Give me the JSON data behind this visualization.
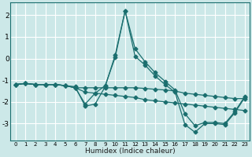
{
  "xlabel": "Humidex (Indice chaleur)",
  "bg_color": "#cce8e8",
  "line_color": "#1a6e6e",
  "grid_color": "#ffffff",
  "x": [
    0,
    1,
    2,
    3,
    4,
    5,
    6,
    7,
    8,
    9,
    10,
    11,
    12,
    13,
    14,
    15,
    16,
    17,
    18,
    19,
    20,
    21,
    22,
    23
  ],
  "line1": [
    -1.2,
    -1.15,
    -1.2,
    -1.2,
    -1.2,
    -1.25,
    -1.3,
    -2.2,
    -2.1,
    -1.3,
    0.15,
    2.2,
    0.1,
    -0.3,
    -0.8,
    -1.2,
    -1.55,
    -3.05,
    -3.4,
    -3.0,
    -3.0,
    -3.05,
    -2.5,
    -1.8
  ],
  "line2": [
    -1.2,
    -1.15,
    -1.2,
    -1.2,
    -1.2,
    -1.25,
    -1.35,
    -2.1,
    -1.6,
    -1.25,
    0.05,
    2.2,
    0.45,
    -0.15,
    -0.65,
    -1.05,
    -1.45,
    -2.55,
    -3.1,
    -2.95,
    -2.95,
    -3.0,
    -2.45,
    -1.75
  ],
  "line3": [
    -1.2,
    -1.15,
    -1.2,
    -1.2,
    -1.2,
    -1.25,
    -1.35,
    -1.35,
    -1.35,
    -1.35,
    -1.35,
    -1.35,
    -1.35,
    -1.38,
    -1.42,
    -1.45,
    -1.5,
    -1.6,
    -1.65,
    -1.7,
    -1.75,
    -1.8,
    -1.85,
    -1.85
  ],
  "line4": [
    -1.2,
    -1.15,
    -1.2,
    -1.2,
    -1.2,
    -1.25,
    -1.35,
    -1.55,
    -1.6,
    -1.65,
    -1.7,
    -1.75,
    -1.8,
    -1.9,
    -1.95,
    -2.0,
    -2.05,
    -2.1,
    -2.15,
    -2.2,
    -2.25,
    -2.3,
    -2.35,
    -2.4
  ],
  "ylim": [
    -3.8,
    2.6
  ],
  "xlim": [
    -0.5,
    23.5
  ],
  "yticks": [
    -3,
    -2,
    -1,
    0,
    1,
    2
  ],
  "xticks": [
    0,
    1,
    2,
    3,
    4,
    5,
    6,
    7,
    8,
    9,
    10,
    11,
    12,
    13,
    14,
    15,
    16,
    17,
    18,
    19,
    20,
    21,
    22,
    23
  ]
}
